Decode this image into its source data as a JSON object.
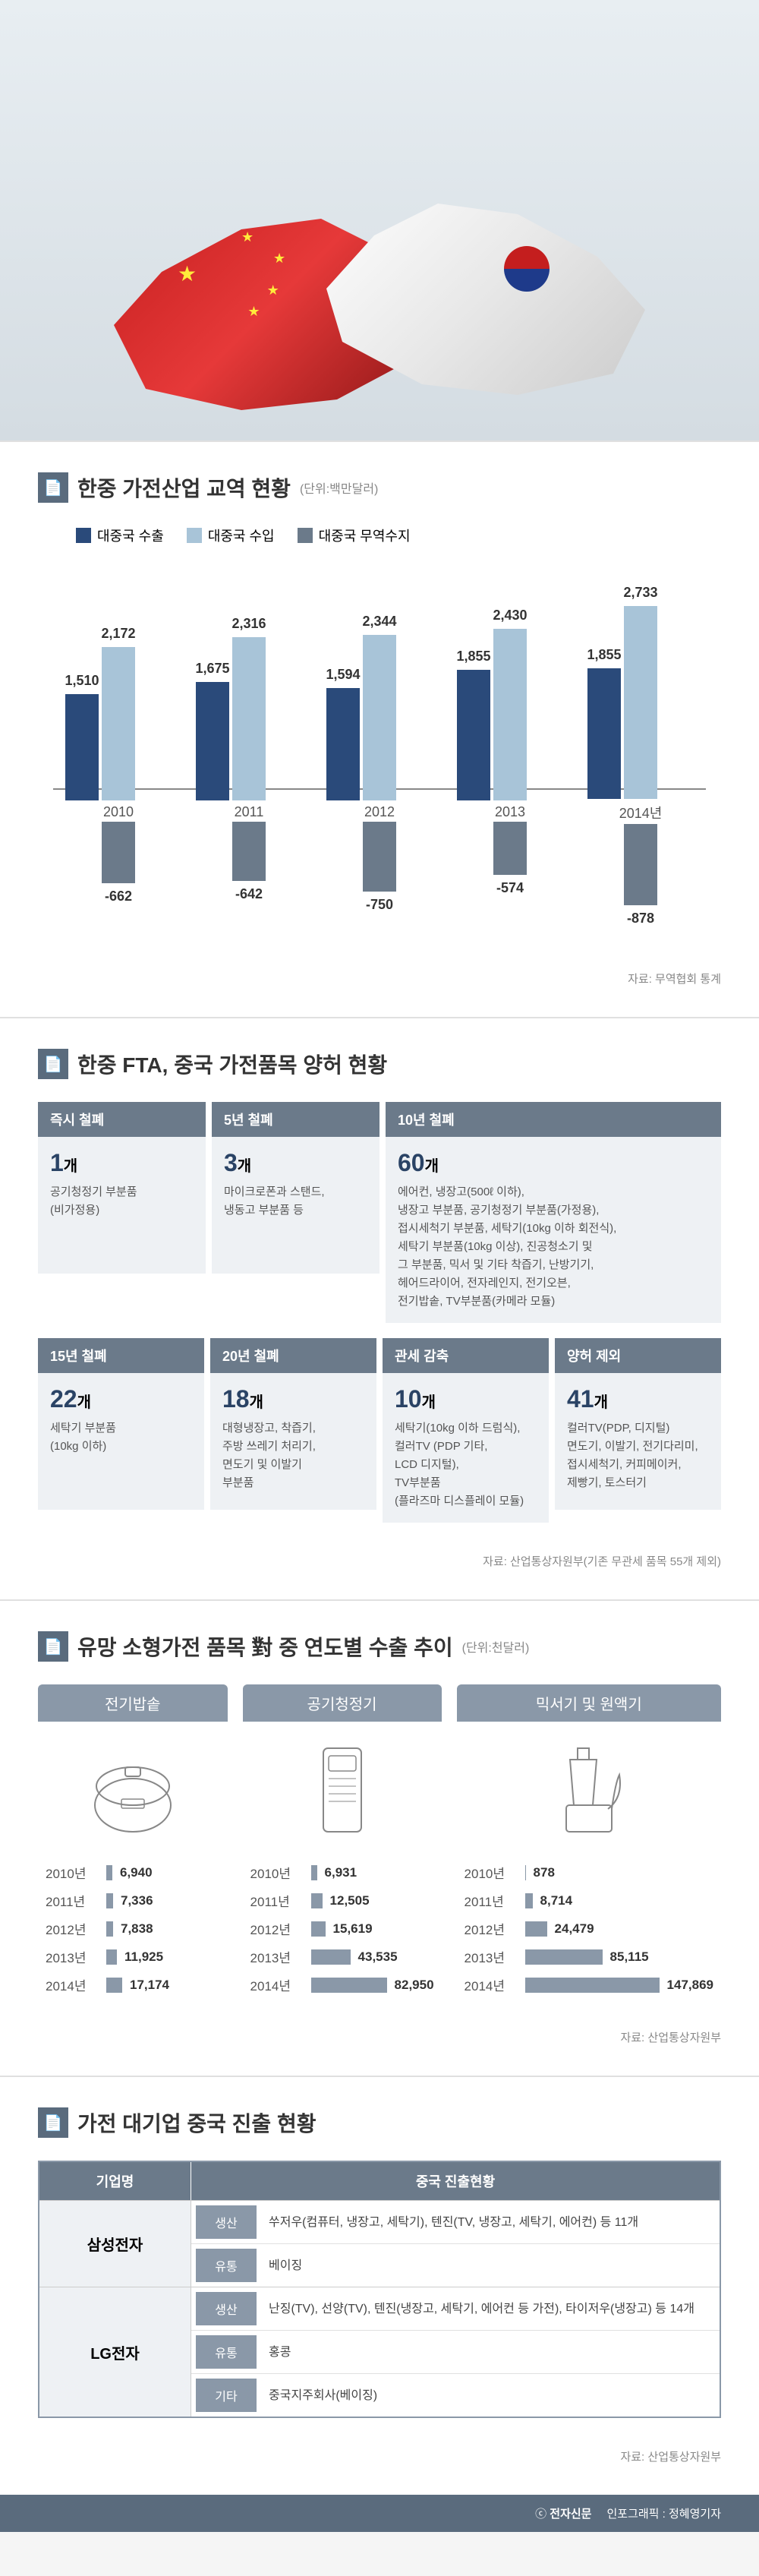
{
  "hero": {
    "alt": "China-Korea handshake with flags"
  },
  "section1": {
    "title": "한중 가전산업 교역 현황",
    "unit": "(단위:백만달러)",
    "legend": [
      {
        "label": "대중국 수출",
        "color": "#2a4a7a"
      },
      {
        "label": "대중국 수입",
        "color": "#a8c4d8"
      },
      {
        "label": "대중국 무역수지",
        "color": "#6b7a8a"
      }
    ],
    "max_pos": 2800,
    "max_neg": 900,
    "years": [
      {
        "year": "2010",
        "export": 1510,
        "import": 2172,
        "balance": -662
      },
      {
        "year": "2011",
        "export": 1675,
        "import": 2316,
        "balance": -642
      },
      {
        "year": "2012",
        "export": 1594,
        "import": 2344,
        "balance": -750
      },
      {
        "year": "2013",
        "export": 1855,
        "import": 2430,
        "balance": -574
      },
      {
        "year": "2014년",
        "export": 1855,
        "import": 2733,
        "balance": -878
      }
    ],
    "source": "자료: 무역협회 통계"
  },
  "section2": {
    "title": "한중 FTA, 중국 가전품목 양허 현황",
    "row1": [
      {
        "head": "즉시 철폐",
        "count": "1",
        "unit": "개",
        "desc": "공기청정기 부분품\n(비가정용)"
      },
      {
        "head": "5년 철폐",
        "count": "3",
        "unit": "개",
        "desc": "마이크로폰과 스탠드,\n냉동고 부분품 등"
      },
      {
        "head": "10년 철폐",
        "count": "60",
        "unit": "개",
        "desc": "에어컨, 냉장고(500ℓ 이하),\n냉장고 부분품, 공기청정기 부분품(가정용),\n접시세척기 부분품, 세탁기(10kg 이하 회전식),\n세탁기 부분품(10kg 이상), 진공청소기 및\n그 부분품, 믹서 및 기타 착즙기, 난방기기,\n헤어드라이어, 전자레인지, 전기오븐,\n전기밥솥, TV부분품(카메라 모듈)"
      }
    ],
    "row2": [
      {
        "head": "15년 철폐",
        "count": "22",
        "unit": "개",
        "desc": "세탁기 부분품\n(10kg 이하)"
      },
      {
        "head": "20년 철폐",
        "count": "18",
        "unit": "개",
        "desc": "대형냉장고, 착즙기,\n주방 쓰레기 처리기,\n면도기 및 이발기\n부분품"
      },
      {
        "head": "관세 감축",
        "count": "10",
        "unit": "개",
        "desc": "세탁기(10kg 이하 드럼식),\n컬러TV (PDP 기타,\nLCD 디지털),\nTV부분품\n(플라즈마 디스플레이 모듈)"
      },
      {
        "head": "양허 제외",
        "count": "41",
        "unit": "개",
        "desc": "컬러TV(PDP, 디지털)\n면도기, 이발기, 전기다리미,\n접시세척기, 커피메이커,\n제빵기, 토스터기"
      }
    ],
    "source": "자료: 산업통상자원부(기존 무관세 품목 55개 제외)"
  },
  "section3": {
    "title": "유망 소형가전 품목 對 중 연도별 수출 추이",
    "unit": "(단위:천달러)",
    "max_val": 150000,
    "products": [
      {
        "name": "전기밥솥",
        "icon": "rice-cooker",
        "rows": [
          {
            "year": "2010년",
            "val": 6940
          },
          {
            "year": "2011년",
            "val": 7336
          },
          {
            "year": "2012년",
            "val": 7838
          },
          {
            "year": "2013년",
            "val": 11925
          },
          {
            "year": "2014년",
            "val": 17174
          }
        ]
      },
      {
        "name": "공기청정기",
        "icon": "air-purifier",
        "rows": [
          {
            "year": "2010년",
            "val": 6931
          },
          {
            "year": "2011년",
            "val": 12505
          },
          {
            "year": "2012년",
            "val": 15619
          },
          {
            "year": "2013년",
            "val": 43535
          },
          {
            "year": "2014년",
            "val": 82950
          }
        ]
      },
      {
        "name": "믹서기 및 원액기",
        "icon": "mixer",
        "rows": [
          {
            "year": "2010년",
            "val": 878
          },
          {
            "year": "2011년",
            "val": 8714
          },
          {
            "year": "2012년",
            "val": 24479
          },
          {
            "year": "2013년",
            "val": 85115
          },
          {
            "year": "2014년",
            "val": 147869
          }
        ]
      }
    ],
    "source": "자료: 산업통상자원부"
  },
  "section4": {
    "title": "가전 대기업 중국 진출 현황",
    "col1": "기업명",
    "col2": "중국 진출현황",
    "companies": [
      {
        "name": "삼성전자",
        "rows": [
          {
            "tag": "생산",
            "text": "쑤저우(컴퓨터, 냉장고, 세탁기), 텐진(TV, 냉장고, 세탁기, 에어컨) 등 11개"
          },
          {
            "tag": "유통",
            "text": "베이징"
          }
        ]
      },
      {
        "name": "LG전자",
        "rows": [
          {
            "tag": "생산",
            "text": "난징(TV), 선양(TV), 텐진(냉장고, 세탁기, 에어컨 등 가전), 타이저우(냉장고) 등 14개"
          },
          {
            "tag": "유통",
            "text": "홍콩"
          },
          {
            "tag": "기타",
            "text": "중국지주회사(베이징)"
          }
        ]
      }
    ],
    "source": "자료: 산업통상자원부"
  },
  "footer": {
    "brand": "전자신문",
    "credit": "인포그래픽 : 정혜영기자"
  }
}
